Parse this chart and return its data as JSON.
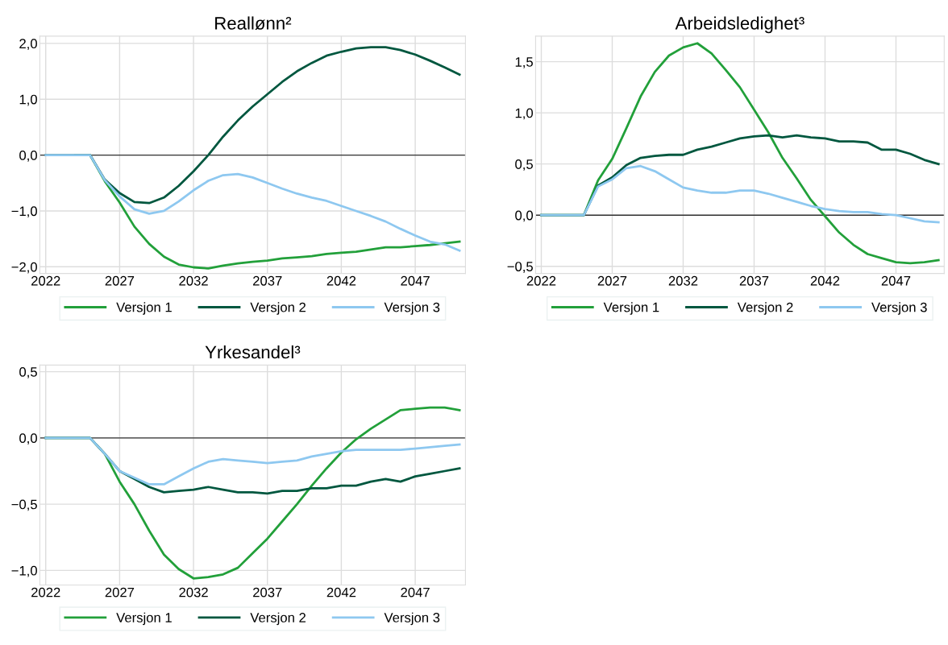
{
  "chart_data": [
    {
      "type": "line",
      "title": "Reallønn²",
      "x": [
        2022,
        2023,
        2024,
        2025,
        2026,
        2027,
        2028,
        2029,
        2030,
        2031,
        2032,
        2033,
        2034,
        2035,
        2036,
        2037,
        2038,
        2039,
        2040,
        2041,
        2042,
        2043,
        2044,
        2045,
        2046,
        2047,
        2048,
        2049,
        2050
      ],
      "series": [
        {
          "name": "Versjon 1",
          "color": "#22a03a",
          "values": [
            null,
            null,
            0,
            0,
            -0.47,
            -0.85,
            -1.28,
            -1.59,
            -1.82,
            -1.96,
            -2.01,
            -2.03,
            -1.98,
            -1.94,
            -1.91,
            -1.89,
            -1.85,
            -1.83,
            -1.81,
            -1.77,
            -1.75,
            -1.73,
            -1.69,
            -1.65,
            -1.65,
            -1.63,
            -1.61,
            -1.58,
            -1.55
          ]
        },
        {
          "name": "Versjon 2",
          "color": "#00573f",
          "values": [
            0,
            0,
            0,
            0,
            -0.44,
            -0.68,
            -0.84,
            -0.86,
            -0.76,
            -0.55,
            -0.29,
            0.0,
            0.33,
            0.62,
            0.87,
            1.09,
            1.31,
            1.5,
            1.65,
            1.78,
            1.85,
            1.91,
            1.93,
            1.93,
            1.88,
            1.8,
            1.69,
            1.57,
            1.44
          ]
        },
        {
          "name": "Versjon 3",
          "color": "#8ec8f0",
          "values": [
            0,
            0,
            0,
            0,
            -0.45,
            -0.74,
            -0.97,
            -1.05,
            -1.0,
            -0.83,
            -0.63,
            -0.46,
            -0.36,
            -0.34,
            -0.4,
            -0.5,
            -0.6,
            -0.69,
            -0.76,
            -0.82,
            -0.91,
            -1.0,
            -1.09,
            -1.19,
            -1.32,
            -1.44,
            -1.55,
            -1.6,
            -1.71
          ]
        }
      ],
      "xlim": [
        2021.6,
        2050.4
      ],
      "xticks": [
        2022,
        2027,
        2032,
        2037,
        2042,
        2047
      ],
      "ylim": [
        -2.12,
        2.13
      ],
      "yticks": [
        {
          "value": -2,
          "label": "−2,0"
        },
        {
          "value": -1,
          "label": "−1,0"
        },
        {
          "value": 0,
          "label": "0,0"
        },
        {
          "value": 1,
          "label": "1,0"
        },
        {
          "value": 2,
          "label": "2,0"
        }
      ],
      "ref_lines": [
        {
          "axis": "y",
          "value": 0,
          "color": "#333333"
        }
      ],
      "grid": true,
      "legend": "bottom"
    },
    {
      "type": "line",
      "title": "Arbeidsledighet³",
      "x": [
        2022,
        2023,
        2024,
        2025,
        2026,
        2027,
        2028,
        2029,
        2030,
        2031,
        2032,
        2033,
        2034,
        2035,
        2036,
        2037,
        2038,
        2039,
        2040,
        2041,
        2042,
        2043,
        2044,
        2045,
        2046,
        2047,
        2048,
        2049,
        2050
      ],
      "series": [
        {
          "name": "Versjon 1",
          "color": "#22a03a",
          "values": [
            0,
            0,
            0,
            0,
            0.34,
            0.55,
            0.85,
            1.16,
            1.4,
            1.56,
            1.64,
            1.68,
            1.58,
            1.42,
            1.25,
            1.03,
            0.81,
            0.56,
            0.36,
            0.15,
            -0.01,
            -0.17,
            -0.29,
            -0.38,
            -0.42,
            -0.46,
            -0.47,
            -0.46,
            -0.44
          ]
        },
        {
          "name": "Versjon 2",
          "color": "#00573f",
          "values": [
            0,
            0,
            0,
            0,
            0.29,
            0.37,
            0.49,
            0.56,
            0.58,
            0.59,
            0.59,
            0.64,
            0.67,
            0.71,
            0.75,
            0.77,
            0.78,
            0.76,
            0.78,
            0.76,
            0.75,
            0.72,
            0.72,
            0.71,
            0.64,
            0.64,
            0.6,
            0.54,
            0.5
          ]
        },
        {
          "name": "Versjon 3",
          "color": "#8ec8f0",
          "values": [
            0,
            0,
            0,
            0,
            0.28,
            0.35,
            0.46,
            0.48,
            0.43,
            0.35,
            0.27,
            0.24,
            0.22,
            0.22,
            0.24,
            0.24,
            0.21,
            0.17,
            0.13,
            0.09,
            0.06,
            0.04,
            0.03,
            0.03,
            0.01,
            0.0,
            -0.03,
            -0.06,
            -0.07
          ]
        }
      ],
      "xlim": [
        2021.6,
        2050.4
      ],
      "xticks": [
        2022,
        2027,
        2032,
        2037,
        2042,
        2047
      ],
      "ylim": [
        -0.57,
        1.75
      ],
      "yticks": [
        {
          "value": -0.5,
          "label": "−0,5"
        },
        {
          "value": 0,
          "label": "0,0"
        },
        {
          "value": 0.5,
          "label": "0,5"
        },
        {
          "value": 1,
          "label": "1,0"
        },
        {
          "value": 1.5,
          "label": "1,5"
        }
      ],
      "ref_lines": [
        {
          "axis": "y",
          "value": 0,
          "color": "#333333"
        }
      ],
      "grid": true,
      "legend": "bottom"
    },
    {
      "type": "line",
      "title": "Yrkesandel³",
      "x": [
        2022,
        2023,
        2024,
        2025,
        2026,
        2027,
        2028,
        2029,
        2030,
        2031,
        2032,
        2033,
        2034,
        2035,
        2036,
        2037,
        2038,
        2039,
        2040,
        2041,
        2042,
        2043,
        2044,
        2045,
        2046,
        2047,
        2048,
        2049,
        2050
      ],
      "series": [
        {
          "name": "Versjon 1",
          "color": "#22a03a",
          "values": [
            0,
            0,
            0,
            0,
            -0.12,
            -0.33,
            -0.5,
            -0.7,
            -0.88,
            -0.99,
            -1.06,
            -1.05,
            -1.03,
            -0.98,
            -0.87,
            -0.76,
            -0.63,
            -0.5,
            -0.36,
            -0.23,
            -0.11,
            -0.01,
            0.07,
            0.14,
            0.21,
            0.22,
            0.23,
            0.23,
            0.21
          ]
        },
        {
          "name": "Versjon 2",
          "color": "#00573f",
          "values": [
            0,
            0,
            0,
            0,
            -0.12,
            -0.25,
            -0.31,
            -0.37,
            -0.41,
            -0.4,
            -0.39,
            -0.37,
            -0.39,
            -0.41,
            -0.41,
            -0.42,
            -0.4,
            -0.4,
            -0.38,
            -0.38,
            -0.36,
            -0.36,
            -0.33,
            -0.31,
            -0.33,
            -0.29,
            -0.27,
            -0.25,
            -0.23
          ]
        },
        {
          "name": "Versjon 3",
          "color": "#8ec8f0",
          "values": [
            0,
            0,
            0,
            0,
            -0.12,
            -0.25,
            -0.3,
            -0.35,
            -0.35,
            -0.29,
            -0.23,
            -0.18,
            -0.16,
            -0.17,
            -0.18,
            -0.19,
            -0.18,
            -0.17,
            -0.14,
            -0.12,
            -0.1,
            -0.09,
            -0.09,
            -0.09,
            -0.09,
            -0.08,
            -0.07,
            -0.06,
            -0.05
          ]
        }
      ],
      "xlim": [
        2021.6,
        2050.4
      ],
      "xticks": [
        2022,
        2027,
        2032,
        2037,
        2042,
        2047
      ],
      "ylim": [
        -1.11,
        0.55
      ],
      "yticks": [
        {
          "value": -1,
          "label": "−1,0"
        },
        {
          "value": -0.5,
          "label": "−0,5"
        },
        {
          "value": 0,
          "label": "0,0"
        },
        {
          "value": 0.5,
          "label": "0,5"
        }
      ],
      "ref_lines": [
        {
          "axis": "y",
          "value": 0,
          "color": "#333333"
        }
      ],
      "grid": true,
      "legend": "bottom"
    }
  ]
}
